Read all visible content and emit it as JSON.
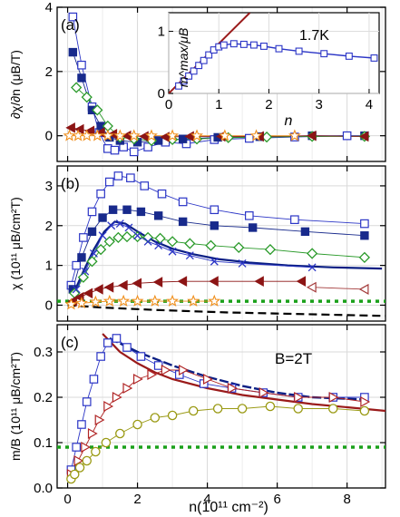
{
  "figure": {
    "xaxis": {
      "ticks": [
        "0",
        "2",
        "4",
        "6",
        "8"
      ],
      "label": "n(10¹¹ cm⁻²)",
      "range": [
        -0.3,
        9.1
      ]
    }
  },
  "colors": {
    "open_square": "#2b35c6",
    "filled_square": "#182a8c",
    "diamond": "#2a9a2a",
    "tri_left_filled": "#8c1515",
    "tri_left_open": "#a33a3a",
    "star": "#f0901e",
    "cross": "#2b35c6",
    "tri_right": "#b02424",
    "circle": "#9a9a14",
    "dash_green": "#1aa01a",
    "dash_black": "#000000",
    "fit_darkblue": "#0b1f84",
    "fit_red": "#9a1a1a",
    "inset_line": "#9a1a1a",
    "inset_square": "#2b35c6"
  },
  "chart_data": [
    {
      "id": "a",
      "type": "scatter",
      "panel_label": "(a)",
      "ylabel": "∂χ/∂n (μB/T)",
      "ylim": [
        -0.8,
        4.0
      ],
      "yticks": [
        "0",
        "2",
        "4"
      ],
      "series": [
        {
          "marker": "open_square",
          "x": [
            0.15,
            0.4,
            0.7,
            0.9,
            1.15,
            1.35,
            1.6,
            1.9,
            2.3,
            2.8,
            3.4,
            4.2,
            5.2,
            6.5,
            8.0
          ],
          "y": [
            3.7,
            2.2,
            0.9,
            0.1,
            -0.4,
            -0.45,
            -0.35,
            -0.5,
            -0.35,
            -0.2,
            -0.25,
            -0.12,
            -0.08,
            -0.04,
            0.0
          ]
        },
        {
          "marker": "filled_square",
          "x": [
            0.15,
            0.4,
            0.7,
            0.95,
            1.2,
            1.5,
            2.0,
            2.6,
            3.3,
            4.3,
            5.5,
            7.0,
            8.5
          ],
          "y": [
            2.6,
            1.8,
            0.8,
            0.3,
            -0.05,
            -0.15,
            -0.2,
            -0.15,
            -0.1,
            -0.05,
            -0.03,
            0.0,
            0.0
          ]
        },
        {
          "marker": "diamond",
          "x": [
            0.25,
            0.55,
            0.85,
            1.15,
            1.5,
            1.9,
            2.4,
            3.0,
            3.7,
            4.6,
            5.7,
            7.0,
            8.5
          ],
          "y": [
            1.5,
            1.2,
            0.8,
            0.3,
            -0.05,
            -0.1,
            -0.15,
            -0.12,
            -0.1,
            -0.06,
            -0.04,
            -0.02,
            -0.02
          ]
        },
        {
          "marker": "tri_left_filled",
          "x": [
            0.1,
            0.35,
            0.65,
            0.95,
            1.3,
            1.7,
            2.2,
            2.8,
            3.5,
            4.4,
            5.5,
            7.0,
            8.5
          ],
          "y": [
            0.25,
            0.2,
            0.15,
            0.1,
            0.05,
            0.0,
            -0.02,
            -0.04,
            -0.02,
            -0.02,
            -0.02,
            0.0,
            -0.02
          ]
        },
        {
          "marker": "star",
          "x": [
            0.05,
            0.3,
            0.55,
            0.85,
            1.15,
            1.5,
            1.9,
            2.4,
            3.0,
            3.7,
            4.5,
            5.4,
            6.5
          ],
          "y": [
            0.0,
            0.0,
            0.0,
            0.0,
            0.0,
            0.0,
            0.0,
            0.0,
            0.0,
            0.0,
            0.0,
            0.0,
            0.0
          ]
        }
      ],
      "inset": {
        "label": "1.7K",
        "ylabel": "m^max/μB",
        "xlabel": "n",
        "xticks": [
          "0",
          "1",
          "2",
          "3",
          "4"
        ],
        "yticks": [
          "0",
          "1"
        ],
        "xlim": [
          0,
          4.2
        ],
        "ylim": [
          0,
          1.3
        ],
        "line": {
          "x": [
            0,
            1.62
          ],
          "y": [
            0,
            1.3
          ]
        },
        "series": {
          "x": [
            0.2,
            0.3,
            0.4,
            0.5,
            0.6,
            0.7,
            0.8,
            0.9,
            1.0,
            1.1,
            1.3,
            1.5,
            1.7,
            1.9,
            2.2,
            2.6,
            3.1,
            3.6,
            4.1
          ],
          "y": [
            0.12,
            0.2,
            0.28,
            0.36,
            0.45,
            0.53,
            0.62,
            0.7,
            0.75,
            0.78,
            0.8,
            0.79,
            0.78,
            0.76,
            0.72,
            0.68,
            0.64,
            0.6,
            0.57
          ]
        }
      }
    },
    {
      "id": "b",
      "type": "scatter",
      "panel_label": "(b)",
      "ylabel": "χ (10¹¹ μB/cm²T)",
      "ylim": [
        -0.4,
        3.5
      ],
      "yticks": [
        "0",
        "1",
        "2",
        "3"
      ],
      "series": [
        {
          "marker": "open_square",
          "x": [
            0.1,
            0.25,
            0.45,
            0.7,
            0.95,
            1.2,
            1.45,
            1.8,
            2.2,
            2.7,
            3.3,
            4.2,
            5.2,
            6.5,
            8.5
          ],
          "y": [
            0.5,
            1.0,
            1.7,
            2.35,
            2.8,
            3.1,
            3.25,
            3.2,
            3.0,
            2.8,
            2.6,
            2.4,
            2.25,
            2.15,
            2.05
          ]
        },
        {
          "marker": "filled_square",
          "x": [
            0.15,
            0.4,
            0.7,
            1.0,
            1.3,
            1.7,
            2.1,
            2.6,
            3.3,
            4.2,
            5.3,
            6.8,
            8.5
          ],
          "y": [
            0.4,
            1.2,
            1.85,
            2.2,
            2.4,
            2.4,
            2.35,
            2.25,
            2.1,
            2.0,
            1.95,
            1.85,
            1.75
          ]
        },
        {
          "marker": "diamond",
          "x": [
            0.2,
            0.45,
            0.7,
            0.95,
            1.2,
            1.45,
            1.7,
            2.0,
            2.3,
            2.65,
            3.0,
            3.5,
            4.1,
            4.9,
            5.8,
            7.0,
            8.5
          ],
          "y": [
            0.3,
            0.7,
            1.1,
            1.4,
            1.6,
            1.7,
            1.72,
            1.72,
            1.7,
            1.68,
            1.6,
            1.55,
            1.5,
            1.45,
            1.4,
            1.3,
            1.2
          ]
        },
        {
          "marker": "cross",
          "x": [
            0.25,
            0.5,
            0.75,
            1.0,
            1.25,
            1.5,
            1.75,
            2.0,
            2.3,
            2.6,
            3.0,
            3.5,
            4.2,
            5.0,
            7.0
          ],
          "y": [
            0.4,
            0.85,
            1.3,
            1.75,
            2.0,
            2.05,
            1.95,
            1.75,
            1.6,
            1.5,
            1.35,
            1.25,
            1.1,
            1.05,
            0.95
          ]
        },
        {
          "marker": "tri_left_filled",
          "x": [
            0.15,
            0.35,
            0.6,
            0.9,
            1.2,
            1.6,
            2.0,
            2.6,
            3.3,
            4.2,
            5.5,
            6.7
          ],
          "y": [
            0.1,
            0.2,
            0.3,
            0.4,
            0.45,
            0.5,
            0.55,
            0.58,
            0.6,
            0.6,
            0.6,
            0.6
          ]
        },
        {
          "marker": "tri_left_open",
          "x": [
            7.0,
            8.5
          ],
          "y": [
            0.45,
            0.4
          ]
        },
        {
          "marker": "star",
          "x": [
            0.1,
            0.4,
            0.8,
            1.2,
            1.6,
            2.0,
            2.5,
            3.0,
            3.6,
            4.2
          ],
          "y": [
            0.02,
            0.05,
            0.08,
            0.1,
            0.1,
            0.1,
            0.1,
            0.1,
            0.1,
            0.1
          ]
        }
      ],
      "lines": [
        {
          "style": "fit_darkblue",
          "x": [
            0.15,
            0.45,
            0.75,
            1.05,
            1.35,
            1.65,
            2.0,
            2.5,
            3.0,
            3.6,
            4.3,
            5.2,
            6.3,
            7.6,
            9.0
          ],
          "y": [
            0.25,
            0.85,
            1.4,
            1.85,
            2.1,
            2.05,
            1.85,
            1.6,
            1.42,
            1.28,
            1.16,
            1.07,
            1.0,
            0.95,
            0.92
          ]
        },
        {
          "style": "dash_green",
          "x": [
            -0.3,
            9.1
          ],
          "y": [
            0.1,
            0.1
          ]
        },
        {
          "style": "dash_black",
          "x": [
            0.0,
            1.0,
            2.5,
            4.5,
            6.5,
            9.1
          ],
          "y": [
            0.0,
            -0.06,
            -0.12,
            -0.18,
            -0.22,
            -0.27
          ]
        }
      ]
    },
    {
      "id": "c",
      "type": "scatter",
      "panel_label": "(c)",
      "annotation": "B=2T",
      "ylabel": "m/B (10¹¹ μB/cm²T)",
      "ylim": [
        0.0,
        0.36
      ],
      "yticks": [
        "0.0",
        "0.1",
        "0.2",
        "0.3"
      ],
      "series": [
        {
          "marker": "open_square",
          "x": [
            0.1,
            0.25,
            0.4,
            0.55,
            0.75,
            0.95,
            1.15,
            1.4,
            1.7,
            2.1,
            2.6,
            3.2,
            3.9,
            4.7,
            5.6,
            6.6,
            7.6,
            8.5
          ],
          "y": [
            0.04,
            0.09,
            0.14,
            0.19,
            0.24,
            0.29,
            0.32,
            0.33,
            0.31,
            0.29,
            0.27,
            0.25,
            0.23,
            0.22,
            0.21,
            0.2,
            0.2,
            0.2
          ]
        },
        {
          "marker": "tri_right",
          "x": [
            0.1,
            0.3,
            0.5,
            0.7,
            0.9,
            1.15,
            1.4,
            1.7,
            2.0,
            2.4,
            2.8,
            3.3,
            4.0,
            4.7,
            5.6,
            6.6,
            7.6,
            8.5
          ],
          "y": [
            0.03,
            0.06,
            0.09,
            0.12,
            0.15,
            0.18,
            0.2,
            0.22,
            0.24,
            0.25,
            0.26,
            0.26,
            0.24,
            0.22,
            0.21,
            0.2,
            0.2,
            0.19
          ]
        },
        {
          "marker": "circle",
          "x": [
            0.1,
            0.2,
            0.35,
            0.55,
            0.8,
            1.1,
            1.5,
            2.0,
            2.5,
            3.0,
            3.6,
            4.3,
            5.0,
            5.8,
            6.6,
            7.6,
            8.5
          ],
          "y": [
            0.02,
            0.03,
            0.045,
            0.06,
            0.08,
            0.1,
            0.12,
            0.14,
            0.155,
            0.16,
            0.17,
            0.175,
            0.175,
            0.18,
            0.175,
            0.175,
            0.17
          ]
        }
      ],
      "lines": [
        {
          "style": "fit_darkblue_dashed",
          "x": [
            1.2,
            2.0,
            3.0,
            4.0,
            5.0,
            6.0,
            7.0,
            8.5
          ],
          "y": [
            0.33,
            0.3,
            0.27,
            0.245,
            0.225,
            0.21,
            0.2,
            0.195
          ]
        },
        {
          "style": "fit_red",
          "x": [
            1.0,
            1.5,
            2.0,
            2.5,
            3.0,
            4.0,
            5.0,
            6.0,
            7.0,
            8.0,
            9.1
          ],
          "y": [
            0.34,
            0.3,
            0.275,
            0.255,
            0.24,
            0.22,
            0.205,
            0.195,
            0.185,
            0.178,
            0.17
          ]
        },
        {
          "style": "dash_green",
          "x": [
            -0.3,
            9.1
          ],
          "y": [
            0.09,
            0.09
          ]
        }
      ]
    }
  ]
}
